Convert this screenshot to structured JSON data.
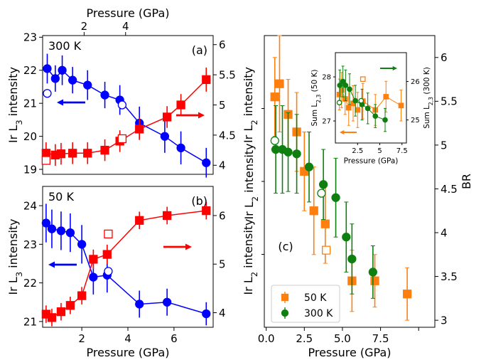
{
  "chart_data": [
    {
      "id": "a",
      "type": "scatter",
      "panel_label": "(a)",
      "annotation": "300 K",
      "xlabel": "",
      "top_xlabel": "Pressure (GPa)",
      "ylabel": "Ir L$3 intensity",
      "y2label": "Ir L$2 intensity",
      "xlim": [
        0.3,
        7.7
      ],
      "ylim": [
        18.85,
        23.05
      ],
      "y2lim": [
        3.85,
        6.15
      ],
      "yticks": [
        19,
        20,
        21,
        22,
        23
      ],
      "y2ticks": [
        4.0,
        4.5,
        5.0,
        5.5,
        6.0
      ],
      "top_xticks": [
        2,
        4
      ],
      "top_xtick_positions": [
        2.1,
        3.9
      ],
      "series": [
        {
          "axis": "left",
          "color": "#0000ff",
          "marker": "circle",
          "filled": true,
          "arrow": "left",
          "points": [
            [
              0.5,
              22.05,
              0.45
            ],
            [
              0.85,
              21.75,
              0.4
            ],
            [
              1.15,
              22.0,
              0.45
            ],
            [
              1.6,
              21.7,
              0.4
            ],
            [
              2.25,
              21.55,
              0.45
            ],
            [
              3.0,
              21.25,
              0.4
            ],
            [
              3.65,
              21.1,
              0.45
            ],
            [
              4.5,
              20.4,
              0.5
            ],
            [
              5.6,
              20.0,
              0.5
            ],
            [
              6.3,
              19.65,
              0.5
            ],
            [
              7.4,
              19.2,
              0.45
            ]
          ]
        },
        {
          "axis": "left",
          "color": "#0000ff",
          "marker": "circle",
          "filled": false,
          "points": [
            [
              0.5,
              21.3,
              0.0
            ],
            [
              3.75,
              20.95,
              0.0
            ]
          ]
        },
        {
          "axis": "right",
          "color": "#ff0000",
          "marker": "square",
          "filled": true,
          "arrow": "right",
          "points": [
            [
              0.45,
              4.2,
              0.18
            ],
            [
              0.85,
              4.17,
              0.18
            ],
            [
              1.1,
              4.19,
              0.18
            ],
            [
              1.6,
              4.2,
              0.18
            ],
            [
              2.25,
              4.2,
              0.18
            ],
            [
              3.0,
              4.25,
              0.18
            ],
            [
              3.65,
              4.4,
              0.18
            ],
            [
              4.5,
              4.6,
              0.18
            ],
            [
              5.7,
              4.8,
              0.18
            ],
            [
              6.3,
              5.0,
              0.18
            ],
            [
              7.4,
              5.42,
              0.2
            ]
          ]
        },
        {
          "axis": "right",
          "color": "#ff0000",
          "marker": "square",
          "filled": false,
          "points": [
            [
              0.45,
              4.08,
              0.0
            ],
            [
              3.75,
              4.44,
              0.0
            ]
          ]
        }
      ]
    },
    {
      "id": "b",
      "type": "scatter",
      "panel_label": "(b)",
      "annotation": "50 K",
      "xlabel": "Pressure (GPa)",
      "ylabel": "Ir L$3 intensity",
      "y2label": "Ir L$2 intensity",
      "xlim": [
        0.3,
        7.7
      ],
      "ylim": [
        20.85,
        24.5
      ],
      "y2lim": [
        3.7,
        6.6
      ],
      "xticks": [
        2,
        4,
        6
      ],
      "yticks": [
        21,
        22,
        23,
        24
      ],
      "y2ticks": [
        4.0,
        5.0,
        6.0
      ],
      "series": [
        {
          "axis": "left",
          "color": "#0000ff",
          "marker": "circle",
          "filled": true,
          "arrow": "left",
          "points": [
            [
              0.45,
              23.55,
              0.5
            ],
            [
              0.7,
              23.4,
              0.5
            ],
            [
              1.1,
              23.35,
              0.5
            ],
            [
              1.5,
              23.3,
              0.5
            ],
            [
              2.0,
              23.0,
              0.5
            ],
            [
              2.5,
              22.15,
              0.45
            ],
            [
              3.1,
              22.2,
              0.45
            ],
            [
              4.5,
              21.45,
              0.35
            ],
            [
              5.7,
              21.5,
              0.35
            ],
            [
              7.4,
              21.2,
              0.3
            ]
          ]
        },
        {
          "axis": "left",
          "color": "#0000ff",
          "marker": "circle",
          "filled": false,
          "points": [
            [
              3.15,
              22.3,
              0.0
            ]
          ]
        },
        {
          "axis": "right",
          "color": "#ff0000",
          "marker": "square",
          "filled": true,
          "arrow": "right",
          "points": [
            [
              0.45,
              3.97,
              0.18
            ],
            [
              0.7,
              3.9,
              0.18
            ],
            [
              1.1,
              4.02,
              0.18
            ],
            [
              1.5,
              4.15,
              0.18
            ],
            [
              2.0,
              4.35,
              0.18
            ],
            [
              2.5,
              5.1,
              0.2
            ],
            [
              3.1,
              5.2,
              0.2
            ],
            [
              4.5,
              5.9,
              0.18
            ],
            [
              5.7,
              6.0,
              0.18
            ],
            [
              7.4,
              6.1,
              0.18
            ]
          ]
        },
        {
          "axis": "right",
          "color": "#ff0000",
          "marker": "square",
          "filled": false,
          "points": [
            [
              3.15,
              5.62,
              0.0
            ]
          ]
        }
      ]
    },
    {
      "id": "c",
      "type": "scatter",
      "panel_label": "(c)",
      "xlabel": "Pressure (GPa)",
      "ylabel": "Ir L$2 intensity",
      "y2label": "BR",
      "xlim": [
        -0.1,
        8.85
      ],
      "y2lim": [
        2.92,
        6.25
      ],
      "xticks": [
        0,
        2,
        4,
        6,
        8
      ],
      "xtick_labels": [
        "0.0",
        "2.5",
        "5.0",
        "7.5"
      ],
      "xtick_label_positions": [
        0,
        2,
        4,
        6
      ],
      "y2ticks": [
        3.0,
        3.5,
        4.0,
        4.5,
        5.0,
        5.5,
        6.0
      ],
      "legend": [
        {
          "label": "50 K",
          "color": "#ff7f0e",
          "marker": "square"
        },
        {
          "label": "300 K",
          "color": "#0f7f0f",
          "marker": "circle"
        }
      ],
      "series": [
        {
          "name": "50 K",
          "color": "#ff7f0e",
          "marker": "square",
          "filled": true,
          "points": [
            [
              0.45,
              5.55,
              0.45
            ],
            [
              0.7,
              5.7,
              0.55
            ],
            [
              1.15,
              5.35,
              0.4
            ],
            [
              1.6,
              5.15,
              0.45
            ],
            [
              2.0,
              4.7,
              0.45
            ],
            [
              2.5,
              4.25,
              0.5
            ],
            [
              3.1,
              4.1,
              0.45
            ],
            [
              4.5,
              3.45,
              0.35
            ],
            [
              5.7,
              3.45,
              0.3
            ],
            [
              7.4,
              3.3,
              0.3
            ]
          ]
        },
        {
          "name": "",
          "color": "#ff7f0e",
          "marker": "square",
          "filled": false,
          "points": [
            [
              3.15,
              3.8,
              0.0
            ]
          ]
        },
        {
          "name": "300 K",
          "color": "#0f7f0f",
          "marker": "circle",
          "filled": true,
          "points": [
            [
              0.5,
              4.95,
              0.5
            ],
            [
              0.85,
              4.95,
              0.5
            ],
            [
              1.15,
              4.92,
              0.45
            ],
            [
              1.6,
              4.9,
              0.45
            ],
            [
              2.25,
              4.75,
              0.4
            ],
            [
              3.0,
              4.55,
              0.4
            ],
            [
              3.65,
              4.4,
              0.45
            ],
            [
              4.2,
              3.95,
              0.4
            ],
            [
              4.5,
              3.7,
              0.4
            ],
            [
              5.6,
              3.55,
              0.3
            ]
          ]
        },
        {
          "name": "",
          "color": "#0f7f0f",
          "marker": "circle",
          "filled": false,
          "points": [
            [
              0.45,
              5.05,
              0.0
            ],
            [
              2.9,
              4.45,
              0.0
            ]
          ]
        }
      ]
    },
    {
      "id": "c-inset",
      "type": "scatter",
      "xlabel": "Pressure (GPa)",
      "ylabel": "Sum L$2,3 (50 K)",
      "y2label": "Sum L$2,3 (300 K)",
      "xlim": [
        0.0,
        8.0
      ],
      "ylim": [
        26.5,
        28.55
      ],
      "y2lim": [
        24.4,
        26.75
      ],
      "xticks": [
        2.5,
        5.0,
        7.5
      ],
      "yticks": [
        27,
        28
      ],
      "y2ticks": [
        25,
        26
      ],
      "series": [
        {
          "axis": "left",
          "color": "#ff7f0e",
          "marker": "square",
          "filled": true,
          "arrow": "left",
          "points": [
            [
              0.45,
              27.6,
              0.35
            ],
            [
              0.7,
              27.7,
              0.4
            ],
            [
              1.1,
              27.5,
              0.35
            ],
            [
              1.5,
              27.3,
              0.4
            ],
            [
              2.0,
              27.4,
              0.4
            ],
            [
              2.5,
              27.25,
              0.4
            ],
            [
              3.1,
              27.45,
              0.4
            ],
            [
              4.5,
              27.25,
              0.35
            ],
            [
              5.7,
              27.55,
              0.35
            ],
            [
              7.4,
              27.35,
              0.35
            ]
          ]
        },
        {
          "axis": "left",
          "color": "#ff7f0e",
          "marker": "square",
          "filled": false,
          "points": [
            [
              3.1,
              27.95,
              0.0
            ]
          ]
        },
        {
          "axis": "right",
          "color": "#0f7f0f",
          "marker": "circle",
          "filled": true,
          "arrow": "right",
          "points": [
            [
              0.5,
              25.9,
              0.4
            ],
            [
              0.85,
              26.0,
              0.4
            ],
            [
              1.15,
              25.9,
              0.4
            ],
            [
              1.6,
              25.8,
              0.4
            ],
            [
              2.25,
              25.5,
              0.4
            ],
            [
              3.0,
              25.4,
              0.4
            ],
            [
              3.65,
              25.3,
              0.4
            ],
            [
              4.5,
              25.1,
              0.3
            ],
            [
              5.6,
              25.0,
              0.3
            ]
          ]
        },
        {
          "axis": "right",
          "color": "#0f7f0f",
          "marker": "circle",
          "filled": false,
          "points": [
            [
              0.45,
              25.45,
              0.0
            ],
            [
              2.9,
              25.5,
              0.0
            ]
          ]
        }
      ]
    }
  ]
}
